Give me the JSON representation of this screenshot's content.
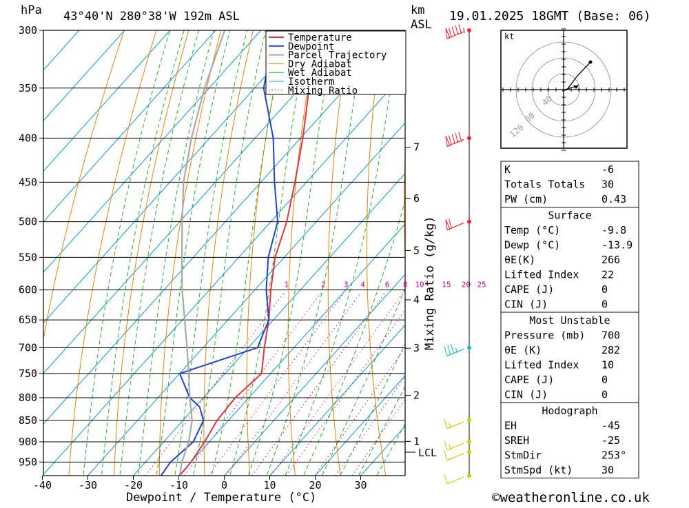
{
  "header": {
    "unit_pressure": "hPa",
    "location": "43°40'N  280°38'W  192m  ASL",
    "km_label": "km",
    "asl_label": "ASL",
    "datetime": "19.01.2025  18GMT  (Base: 06)"
  },
  "legend": [
    "Temperature",
    "Dewpoint",
    "Parcel Trajectory",
    "Dry Adiabat",
    "Wet Adiabat",
    "Isotherm",
    "Mixing Ratio"
  ],
  "colors": {
    "temperature": "#e8303a",
    "dewpoint": "#1f3fd6",
    "parcel": "#a8a8a8",
    "dry_adiabat": "#f08000",
    "wet_adiabat": "#20b020",
    "isotherm": "#1aa0e8",
    "mixing_ratio": "#d0008f",
    "wind_red": "#ff2030",
    "wind_cyan": "#10c0c0",
    "wind_yellow": "#d8c800"
  },
  "axes": {
    "x_label": "Dewpoint / Temperature (°C)",
    "y_label": "Mixing Ratio (g/kg)",
    "x_ticks": [
      "-40",
      "-30",
      "-20",
      "-10",
      "0",
      "10",
      "20",
      "30"
    ],
    "pressure_ticks": [
      "300",
      "350",
      "400",
      "450",
      "500",
      "550",
      "600",
      "650",
      "700",
      "750",
      "800",
      "850",
      "900",
      "950"
    ],
    "km_ticks": [
      "7",
      "6",
      "5",
      "4",
      "3",
      "2",
      "1"
    ],
    "lcl_label": "LCL",
    "mixing_ratio_labels": [
      "1",
      "2",
      "3",
      "4",
      "6",
      "8",
      "10",
      "15",
      "20",
      "25"
    ]
  },
  "chart_data": {
    "type": "line",
    "title": "43°40'N  280°38'W  192m  ASL",
    "xlabel": "Dewpoint / Temperature (°C)",
    "x_range": [
      -40,
      40
    ],
    "pressure_range_hPa": [
      985,
      300
    ],
    "pressure_scale": "log",
    "series": [
      {
        "name": "Temperature",
        "pressure": [
          985,
          950,
          900,
          850,
          800,
          750,
          700,
          650,
          600,
          550,
          500,
          450,
          400,
          350,
          300
        ],
        "temperature": [
          -9.8,
          -10,
          -11,
          -12.5,
          -13,
          -12,
          -16.5,
          -21,
          -26.5,
          -32,
          -36.5,
          -42.5,
          -49.5,
          -58,
          -67
        ]
      },
      {
        "name": "Dewpoint",
        "pressure": [
          985,
          950,
          900,
          850,
          820,
          800,
          750,
          700,
          650,
          600,
          550,
          500,
          450,
          400,
          350,
          300
        ],
        "temperature": [
          -13.9,
          -14.5,
          -13.5,
          -15.5,
          -19,
          -23,
          -30,
          -18,
          -21,
          -27.5,
          -33.5,
          -38.5,
          -47,
          -56,
          -68,
          -77
        ]
      },
      {
        "name": "Parcel Trajectory",
        "pressure": [
          985,
          950,
          900,
          850,
          800,
          750,
          700,
          650,
          600,
          550,
          500,
          450,
          400,
          350,
          300
        ],
        "temperature": [
          -9.8,
          -12,
          -14.5,
          -18,
          -23,
          -28,
          -33.5,
          -39.5,
          -46,
          -52.5,
          -59.5,
          -67,
          -74,
          -81,
          -88
        ]
      }
    ],
    "wind_barbs": [
      {
        "pressure": 300,
        "speed_kt": 95,
        "color": "red"
      },
      {
        "pressure": 400,
        "speed_kt": 90,
        "color": "red"
      },
      {
        "pressure": 500,
        "speed_kt": 60,
        "color": "red"
      },
      {
        "pressure": 700,
        "speed_kt": 35,
        "color": "cyan"
      },
      {
        "pressure": 850,
        "speed_kt": 15,
        "color": "yellow"
      },
      {
        "pressure": 900,
        "speed_kt": 15,
        "color": "yellow"
      },
      {
        "pressure": 925,
        "speed_kt": 10,
        "color": "yellow"
      },
      {
        "pressure": 985,
        "speed_kt": 10,
        "color": "yellow"
      }
    ],
    "hodograph": {
      "unit": "kt",
      "ring_labels": [
        "40",
        "80",
        "120"
      ],
      "storm_motion": {
        "dir_deg": 253,
        "speed_kt": 30
      }
    }
  },
  "indices": {
    "general": [
      {
        "label": "K",
        "value": "-6"
      },
      {
        "label": "Totals Totals",
        "value": "30"
      },
      {
        "label": "PW (cm)",
        "value": "0.43"
      }
    ],
    "surface": {
      "title": "Surface",
      "rows": [
        {
          "label": "Temp (°C)",
          "value": "-9.8"
        },
        {
          "label": "Dewp (°C)",
          "value": "-13.9"
        },
        {
          "label": "θE(K)",
          "value": "266"
        },
        {
          "label": "Lifted Index",
          "value": "22"
        },
        {
          "label": "CAPE (J)",
          "value": "0"
        },
        {
          "label": "CIN (J)",
          "value": "0"
        }
      ]
    },
    "most_unstable": {
      "title": "Most Unstable",
      "rows": [
        {
          "label": "Pressure (mb)",
          "value": "700"
        },
        {
          "label": "θE (K)",
          "value": "282"
        },
        {
          "label": "Lifted Index",
          "value": "10"
        },
        {
          "label": "CAPE (J)",
          "value": "0"
        },
        {
          "label": "CIN (J)",
          "value": "0"
        }
      ]
    },
    "hodograph": {
      "title": "Hodograph",
      "rows": [
        {
          "label": "EH",
          "value": "-45"
        },
        {
          "label": "SREH",
          "value": "-25"
        },
        {
          "label": "StmDir",
          "value": "253°"
        },
        {
          "label": "StmSpd (kt)",
          "value": "30"
        }
      ]
    }
  },
  "footer": {
    "copyright": "©weatheronline.co.uk"
  }
}
